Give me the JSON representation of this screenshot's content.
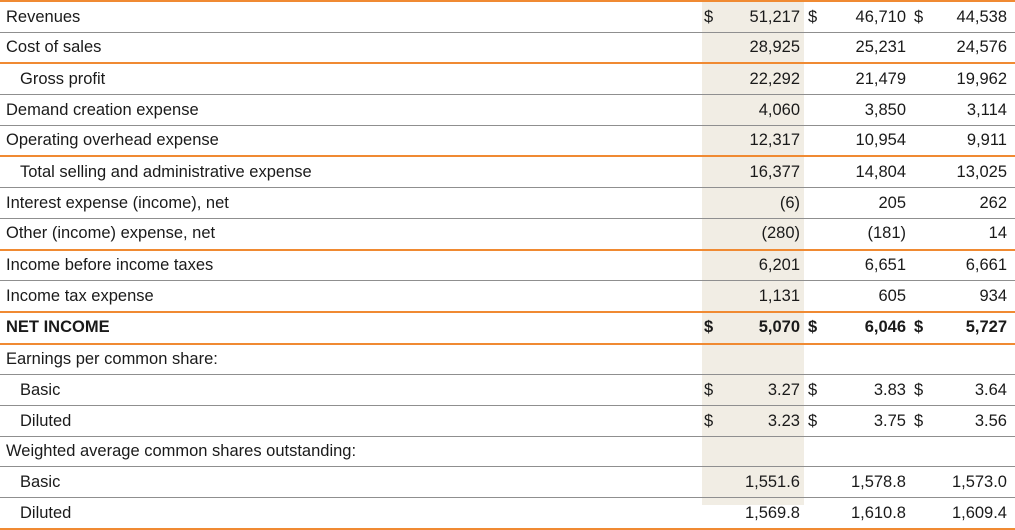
{
  "statement": {
    "rows": [
      {
        "label": "Revenues",
        "indent": false,
        "bold": false,
        "orange": false,
        "cells": [
          {
            "cur": "$",
            "val": "51,217"
          },
          {
            "cur": "$",
            "val": "46,710"
          },
          {
            "cur": "$",
            "val": "44,538"
          }
        ]
      },
      {
        "label": "Cost of sales",
        "indent": false,
        "bold": false,
        "orange": true,
        "cells": [
          {
            "cur": "",
            "val": "28,925"
          },
          {
            "cur": "",
            "val": "25,231"
          },
          {
            "cur": "",
            "val": "24,576"
          }
        ]
      },
      {
        "label": "Gross profit",
        "indent": true,
        "bold": false,
        "orange": false,
        "cells": [
          {
            "cur": "",
            "val": "22,292"
          },
          {
            "cur": "",
            "val": "21,479"
          },
          {
            "cur": "",
            "val": "19,962"
          }
        ]
      },
      {
        "label": "Demand creation expense",
        "indent": false,
        "bold": false,
        "orange": false,
        "cells": [
          {
            "cur": "",
            "val": "4,060"
          },
          {
            "cur": "",
            "val": "3,850"
          },
          {
            "cur": "",
            "val": "3,114"
          }
        ]
      },
      {
        "label": "Operating overhead expense",
        "indent": false,
        "bold": false,
        "orange": true,
        "cells": [
          {
            "cur": "",
            "val": "12,317"
          },
          {
            "cur": "",
            "val": "10,954"
          },
          {
            "cur": "",
            "val": "9,911"
          }
        ]
      },
      {
        "label": "Total selling and administrative expense",
        "indent": true,
        "bold": false,
        "orange": false,
        "cells": [
          {
            "cur": "",
            "val": "16,377"
          },
          {
            "cur": "",
            "val": "14,804"
          },
          {
            "cur": "",
            "val": "13,025"
          }
        ]
      },
      {
        "label": "Interest expense (income), net",
        "indent": false,
        "bold": false,
        "orange": false,
        "cells": [
          {
            "cur": "",
            "val": "(6)"
          },
          {
            "cur": "",
            "val": "205"
          },
          {
            "cur": "",
            "val": "262"
          }
        ]
      },
      {
        "label": "Other (income) expense, net",
        "indent": false,
        "bold": false,
        "orange": true,
        "cells": [
          {
            "cur": "",
            "val": "(280)"
          },
          {
            "cur": "",
            "val": "(181)"
          },
          {
            "cur": "",
            "val": "14"
          }
        ]
      },
      {
        "label": "Income before income taxes",
        "indent": false,
        "bold": false,
        "orange": false,
        "cells": [
          {
            "cur": "",
            "val": "6,201"
          },
          {
            "cur": "",
            "val": "6,651"
          },
          {
            "cur": "",
            "val": "6,661"
          }
        ]
      },
      {
        "label": "Income tax expense",
        "indent": false,
        "bold": false,
        "orange": true,
        "cells": [
          {
            "cur": "",
            "val": "1,131"
          },
          {
            "cur": "",
            "val": "605"
          },
          {
            "cur": "",
            "val": "934"
          }
        ]
      },
      {
        "label": "NET INCOME",
        "indent": false,
        "bold": true,
        "orange": true,
        "cells": [
          {
            "cur": "$",
            "val": "5,070"
          },
          {
            "cur": "$",
            "val": "6,046"
          },
          {
            "cur": "$",
            "val": "5,727"
          }
        ]
      },
      {
        "label": "Earnings per common share:",
        "indent": false,
        "bold": false,
        "orange": false,
        "cells": [
          {
            "cur": "",
            "val": ""
          },
          {
            "cur": "",
            "val": ""
          },
          {
            "cur": "",
            "val": ""
          }
        ]
      },
      {
        "label": "Basic",
        "indent": true,
        "bold": false,
        "orange": false,
        "cells": [
          {
            "cur": "$",
            "val": "3.27"
          },
          {
            "cur": "$",
            "val": "3.83"
          },
          {
            "cur": "$",
            "val": "3.64"
          }
        ]
      },
      {
        "label": "Diluted",
        "indent": true,
        "bold": false,
        "orange": false,
        "cells": [
          {
            "cur": "$",
            "val": "3.23"
          },
          {
            "cur": "$",
            "val": "3.75"
          },
          {
            "cur": "$",
            "val": "3.56"
          }
        ]
      },
      {
        "label": "Weighted average common shares outstanding:",
        "indent": false,
        "bold": false,
        "orange": false,
        "cells": [
          {
            "cur": "",
            "val": ""
          },
          {
            "cur": "",
            "val": ""
          },
          {
            "cur": "",
            "val": ""
          }
        ]
      },
      {
        "label": "Basic",
        "indent": true,
        "bold": false,
        "orange": false,
        "cells": [
          {
            "cur": "",
            "val": "1,551.6"
          },
          {
            "cur": "",
            "val": "1,578.8"
          },
          {
            "cur": "",
            "val": "1,573.0"
          }
        ]
      },
      {
        "label": "Diluted",
        "indent": true,
        "bold": false,
        "orange": true,
        "cells": [
          {
            "cur": "",
            "val": "1,569.8"
          },
          {
            "cur": "",
            "val": "1,610.8"
          },
          {
            "cur": "",
            "val": "1,609.4"
          }
        ]
      }
    ]
  },
  "colors": {
    "rule_orange": "#f08a32",
    "rule_gray": "#8f8f8f",
    "highlight_column": "#f1ede4"
  }
}
